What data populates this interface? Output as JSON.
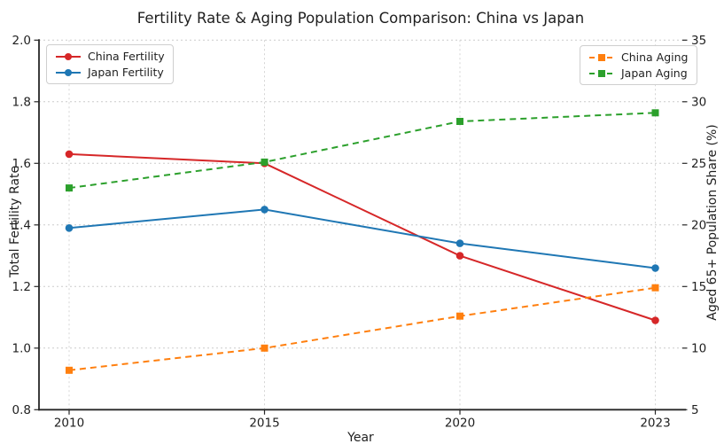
{
  "chart_data": {
    "type": "line",
    "title": "Fertility Rate & Aging Population Comparison: China vs Japan",
    "xlabel": "Year",
    "x_categories": [
      "2010",
      "2015",
      "2020",
      "2023"
    ],
    "left_axis": {
      "label": "Total Fertility Rate",
      "min": 0.8,
      "max": 2.0,
      "ticks": [
        0.8,
        1.0,
        1.2,
        1.4,
        1.6,
        1.8,
        2.0
      ]
    },
    "right_axis": {
      "label": "Aged 65+ Population Share (%)",
      "min": 5,
      "max": 35,
      "ticks": [
        5,
        10,
        15,
        20,
        25,
        30,
        35
      ]
    },
    "grid": true,
    "background": "#ffffff",
    "series": [
      {
        "name": "China Fertility",
        "axis": "left",
        "color": "#d62728",
        "line_style": "solid",
        "marker": "circle",
        "values": [
          1.63,
          1.6,
          1.3,
          1.09
        ]
      },
      {
        "name": "Japan Fertility",
        "axis": "left",
        "color": "#1f77b4",
        "line_style": "solid",
        "marker": "circle",
        "values": [
          1.39,
          1.45,
          1.34,
          1.26
        ]
      },
      {
        "name": "China Aging",
        "axis": "right",
        "color": "#ff7f0e",
        "line_style": "dashed",
        "marker": "square",
        "values": [
          8.2,
          10.0,
          12.6,
          14.9
        ]
      },
      {
        "name": "Japan Aging",
        "axis": "right",
        "color": "#2ca02c",
        "line_style": "dashed",
        "marker": "square",
        "values": [
          23.0,
          25.1,
          28.4,
          29.1
        ]
      }
    ],
    "legends": [
      {
        "position": "upper-left",
        "entries": [
          "China Fertility",
          "Japan Fertility"
        ]
      },
      {
        "position": "upper-right",
        "entries": [
          "China Aging",
          "Japan Aging"
        ]
      }
    ]
  }
}
